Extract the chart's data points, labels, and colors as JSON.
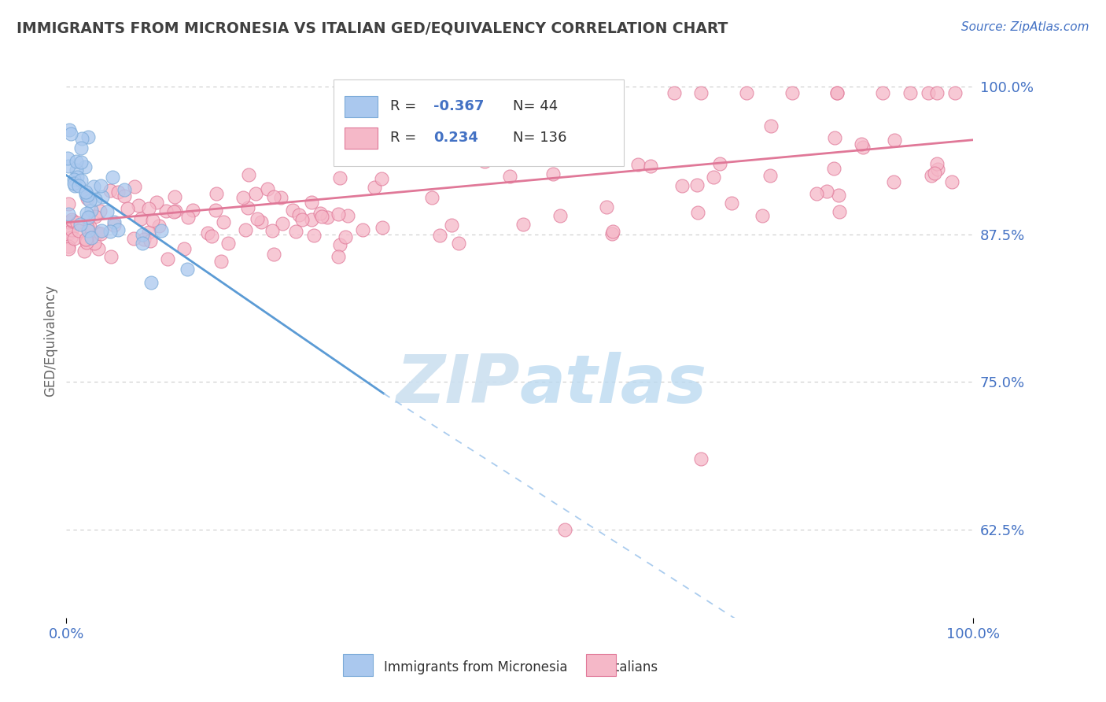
{
  "title": "IMMIGRANTS FROM MICRONESIA VS ITALIAN GED/EQUIVALENCY CORRELATION CHART",
  "source_text": "Source: ZipAtlas.com",
  "ylabel": "GED/Equivalency",
  "y_ticks": [
    62.5,
    75.0,
    87.5,
    100.0
  ],
  "watermark": "ZIPatlas",
  "legend_R1": "-0.367",
  "legend_N1": "44",
  "legend_R2": "0.234",
  "legend_N2": "136",
  "background_color": "#ffffff",
  "blue_color": "#aac8ee",
  "pink_color": "#f5b8c8",
  "blue_edge_color": "#7baad8",
  "pink_edge_color": "#e07898",
  "blue_line_color": "#5b9bd5",
  "pink_line_color": "#e07898",
  "dash_color": "#aaccee",
  "grid_color": "#cccccc",
  "text_color": "#4472c4",
  "title_color": "#404040",
  "watermark_color": "#cce0f0"
}
